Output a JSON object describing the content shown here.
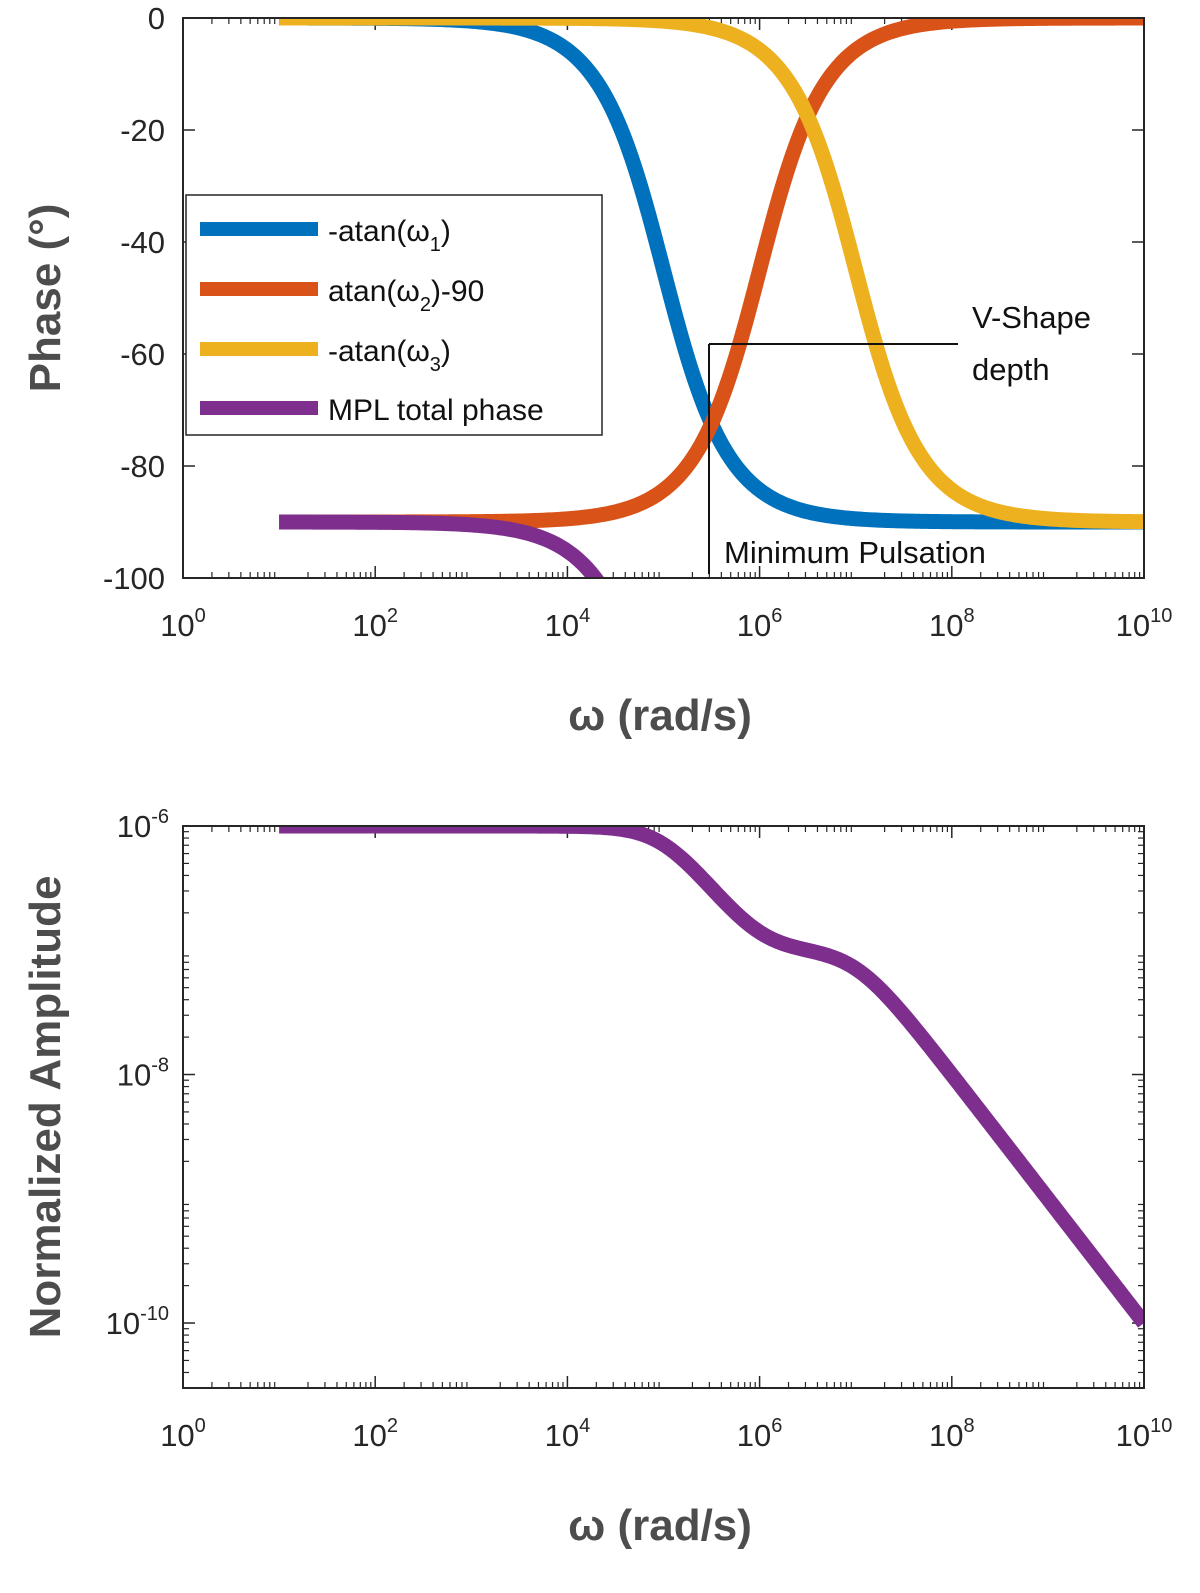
{
  "chart_data": [
    {
      "type": "line",
      "id": "phase",
      "xscale": "log",
      "xlim": [
        1,
        10000000000
      ],
      "ylim": [
        -100,
        0
      ],
      "xlabel": "ω (rad/s)",
      "ylabel": "Phase (°)",
      "xticks": [
        {
          "base": "10",
          "exp": "0"
        },
        {
          "base": "10",
          "exp": "2"
        },
        {
          "base": "10",
          "exp": "4"
        },
        {
          "base": "10",
          "exp": "6"
        },
        {
          "base": "10",
          "exp": "8"
        },
        {
          "base": "10",
          "exp": "10"
        }
      ],
      "yticks": [
        "0",
        "-20",
        "-40",
        "-60",
        "-80",
        "-100"
      ],
      "x_start": 10,
      "x_end": 10000000000,
      "poles": {
        "w1": 100000,
        "w2": 1000000,
        "w3": 10000000
      },
      "series": [
        {
          "key": "s1",
          "legend": "-atan(ω1)",
          "legend_main": "-atan(ω",
          "legend_sub": "1",
          "legend_tail": ")",
          "color": "#0072BD",
          "formula": "-atan(w/w1)"
        },
        {
          "key": "s2",
          "legend": "atan(ω2)-90",
          "legend_main": "atan(ω",
          "legend_sub": "2",
          "legend_tail": ")-90",
          "color": "#D95319",
          "formula": "atan(w/w2)-90"
        },
        {
          "key": "s3",
          "legend": "-atan(ω3)",
          "legend_main": "-atan(ω",
          "legend_sub": "3",
          "legend_tail": ")",
          "color": "#EDB120",
          "formula": "-atan(w/w3)"
        },
        {
          "key": "s4",
          "legend": "MPL total phase",
          "legend_main": "MPL total phase",
          "legend_sub": "",
          "legend_tail": "",
          "color": "#7E2F8E",
          "formula": "sum of the three"
        }
      ],
      "annotations": {
        "vshape_line1": "V-Shape",
        "vshape_line2": "depth",
        "min_pulsation": "Minimum Pulsation",
        "min_pulsation_x": 316228,
        "min_pulsation_y": -57.2
      },
      "legend_location": "left-middle"
    },
    {
      "type": "line",
      "id": "amplitude",
      "xscale": "log",
      "yscale": "log",
      "xlim": [
        1,
        10000000000
      ],
      "ylim": [
        3e-11,
        1e-06
      ],
      "xlabel": "ω (rad/s)",
      "ylabel": "Normalized Amplitude",
      "xticks": [
        {
          "base": "10",
          "exp": "0"
        },
        {
          "base": "10",
          "exp": "2"
        },
        {
          "base": "10",
          "exp": "4"
        },
        {
          "base": "10",
          "exp": "6"
        },
        {
          "base": "10",
          "exp": "8"
        },
        {
          "base": "10",
          "exp": "10"
        }
      ],
      "yticks": [
        {
          "base": "10",
          "exp": "-6",
          "value": 1e-06
        },
        {
          "base": "10",
          "exp": "-8",
          "value": 1e-08
        },
        {
          "base": "10",
          "exp": "-10",
          "value": 1e-10
        }
      ],
      "x_start": 10,
      "x_end": 10000000000,
      "series": [
        {
          "key": "amp",
          "color": "#7E2F8E",
          "dc_gain": 1e-06,
          "formula": "dc * |(1 + j w/w2)| / (w/w2 * |1 + j w/w1| * |1 + j w/w3|) normalized"
        }
      ]
    }
  ]
}
